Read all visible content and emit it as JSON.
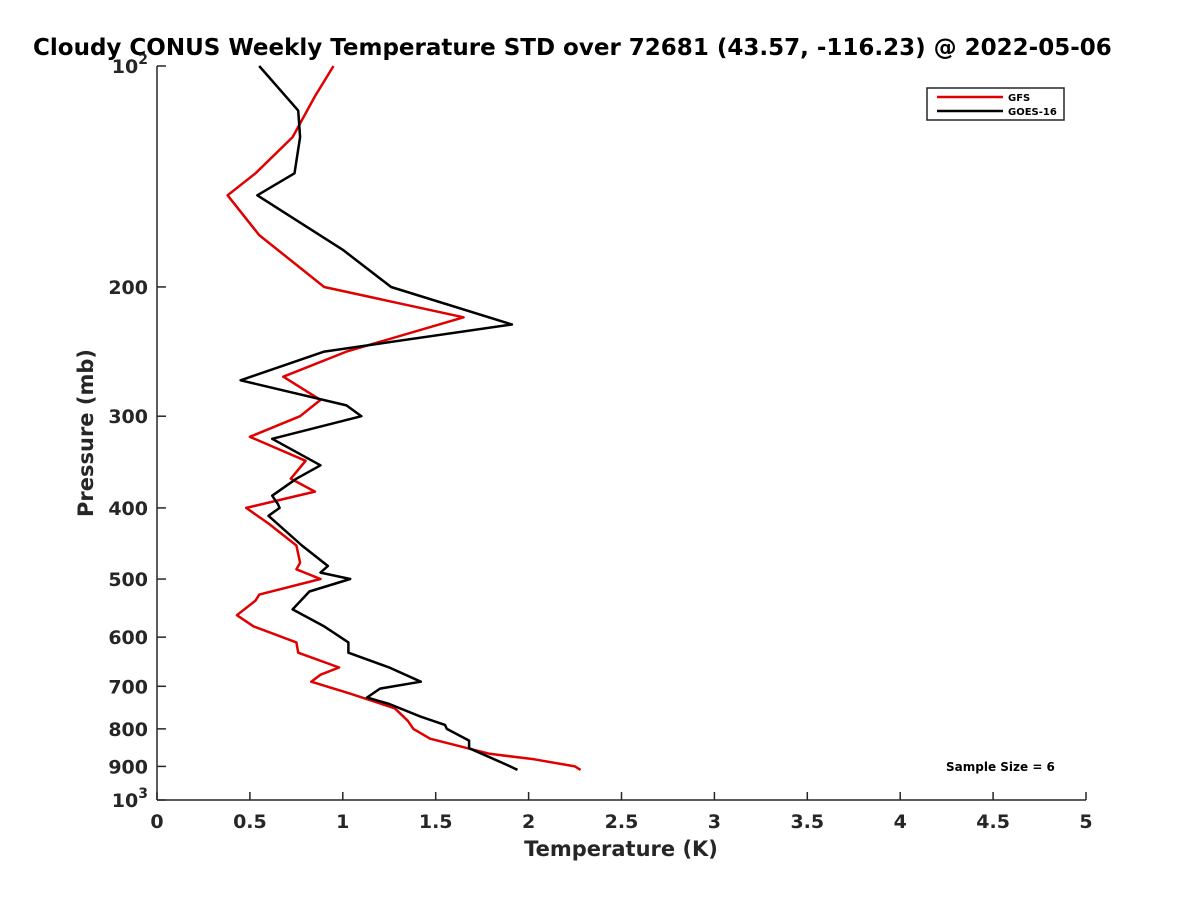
{
  "chart_data": {
    "type": "line",
    "title": "Cloudy CONUS Weekly Temperature STD over 72681 (43.57, -116.23) @ 2022-05-06",
    "xlabel": "Temperature (K)",
    "ylabel": "Pressure (mb)",
    "xlim": [
      0,
      5
    ],
    "ylim": [
      1000,
      100
    ],
    "y_scale": "log",
    "y_reversed": true,
    "x_ticks": [
      "0",
      "0.5",
      "1",
      "1.5",
      "2",
      "2.5",
      "3",
      "3.5",
      "4",
      "4.5",
      "5"
    ],
    "x_tick_values": [
      0,
      0.5,
      1,
      1.5,
      2,
      2.5,
      3,
      3.5,
      4,
      4.5,
      5
    ],
    "y_ticks": [
      {
        "value": 100,
        "base": "10",
        "exp": "2"
      },
      {
        "value": 200,
        "label": "200"
      },
      {
        "value": 300,
        "label": "300"
      },
      {
        "value": 400,
        "label": "400"
      },
      {
        "value": 500,
        "label": "500"
      },
      {
        "value": 600,
        "label": "600"
      },
      {
        "value": 700,
        "label": "700"
      },
      {
        "value": 800,
        "label": "800"
      },
      {
        "value": 900,
        "label": "900"
      },
      {
        "value": 1000,
        "base": "10",
        "exp": "3"
      }
    ],
    "grid": false,
    "legend_position": "top-right",
    "annotation": "Sample Size = 6",
    "series": [
      {
        "name": "GFS",
        "color": "#e00000",
        "points": [
          [
            0.95,
            100
          ],
          [
            0.85,
            110
          ],
          [
            0.73,
            125
          ],
          [
            0.53,
            140
          ],
          [
            0.38,
            150
          ],
          [
            0.55,
            170
          ],
          [
            0.9,
            200
          ],
          [
            1.65,
            220
          ],
          [
            1.02,
            245
          ],
          [
            0.68,
            265
          ],
          [
            0.88,
            285
          ],
          [
            0.77,
            300
          ],
          [
            0.5,
            320
          ],
          [
            0.8,
            345
          ],
          [
            0.72,
            365
          ],
          [
            0.85,
            380
          ],
          [
            0.48,
            400
          ],
          [
            0.6,
            420
          ],
          [
            0.75,
            450
          ],
          [
            0.77,
            475
          ],
          [
            0.75,
            485
          ],
          [
            0.88,
            500
          ],
          [
            0.55,
            525
          ],
          [
            0.53,
            535
          ],
          [
            0.43,
            560
          ],
          [
            0.52,
            580
          ],
          [
            0.75,
            610
          ],
          [
            0.76,
            630
          ],
          [
            0.98,
            660
          ],
          [
            0.88,
            675
          ],
          [
            0.83,
            690
          ],
          [
            1.03,
            715
          ],
          [
            1.28,
            750
          ],
          [
            1.35,
            780
          ],
          [
            1.38,
            800
          ],
          [
            1.47,
            825
          ],
          [
            1.79,
            865
          ],
          [
            2.03,
            880
          ],
          [
            2.25,
            900
          ],
          [
            2.28,
            910
          ]
        ]
      },
      {
        "name": "GOES-16",
        "color": "#000000",
        "points": [
          [
            0.55,
            100
          ],
          [
            0.76,
            115
          ],
          [
            0.77,
            125
          ],
          [
            0.74,
            140
          ],
          [
            0.54,
            150
          ],
          [
            1.0,
            178
          ],
          [
            1.26,
            200
          ],
          [
            1.91,
            225
          ],
          [
            0.9,
            245
          ],
          [
            0.45,
            268
          ],
          [
            1.02,
            290
          ],
          [
            1.1,
            300
          ],
          [
            0.62,
            322
          ],
          [
            0.88,
            350
          ],
          [
            0.75,
            365
          ],
          [
            0.62,
            385
          ],
          [
            0.65,
            395
          ],
          [
            0.66,
            400
          ],
          [
            0.6,
            410
          ],
          [
            0.78,
            450
          ],
          [
            0.92,
            480
          ],
          [
            0.88,
            490
          ],
          [
            1.04,
            500
          ],
          [
            0.82,
            520
          ],
          [
            0.73,
            550
          ],
          [
            0.9,
            580
          ],
          [
            1.03,
            610
          ],
          [
            1.03,
            630
          ],
          [
            1.25,
            660
          ],
          [
            1.42,
            690
          ],
          [
            1.2,
            705
          ],
          [
            1.13,
            725
          ],
          [
            1.25,
            740
          ],
          [
            1.42,
            770
          ],
          [
            1.55,
            790
          ],
          [
            1.56,
            800
          ],
          [
            1.68,
            830
          ],
          [
            1.68,
            850
          ],
          [
            1.88,
            895
          ],
          [
            1.94,
            910
          ]
        ]
      }
    ]
  }
}
